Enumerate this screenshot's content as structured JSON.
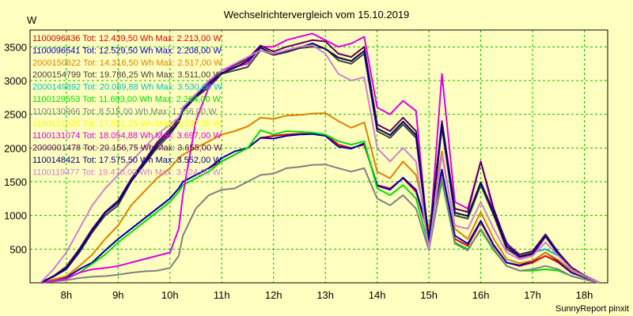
{
  "chart_data": {
    "type": "line",
    "title": "Wechselrichtervergleich vom 15.10.2019",
    "ylabel": "W",
    "xlabel": "",
    "footer": "SunnyReport pinxit",
    "ylim": [
      0,
      3750
    ],
    "xlim": [
      7.3,
      18.45
    ],
    "grid": true,
    "legend_position": "top-left",
    "y_ticks": [
      500,
      1000,
      1500,
      2000,
      2500,
      3000,
      3500
    ],
    "x_ticks": [
      {
        "v": 8,
        "label": "8h"
      },
      {
        "v": 9,
        "label": "9h"
      },
      {
        "v": 10,
        "label": "10h"
      },
      {
        "v": 11,
        "label": "11h"
      },
      {
        "v": 12,
        "label": "12h"
      },
      {
        "v": 13,
        "label": "13h"
      },
      {
        "v": 14,
        "label": "14h"
      },
      {
        "v": 15,
        "label": "15h"
      },
      {
        "v": 16,
        "label": "16h"
      },
      {
        "v": 17,
        "label": "17h"
      },
      {
        "v": 18,
        "label": "18h"
      }
    ],
    "x": [
      7.5,
      7.75,
      8,
      8.25,
      8.5,
      8.75,
      9,
      9.25,
      9.5,
      9.75,
      10,
      10.17,
      10.25,
      10.5,
      10.75,
      11,
      11.25,
      11.5,
      11.75,
      12,
      12.25,
      12.5,
      12.75,
      13,
      13.25,
      13.5,
      13.75,
      14,
      14.25,
      14.5,
      14.75,
      15,
      15.25,
      15.5,
      15.75,
      16,
      16.25,
      16.5,
      16.75,
      17,
      17.25,
      17.5,
      17.75,
      18,
      18.3
    ],
    "series": [
      {
        "label": "1100096436 Tot: 12.439,50 Wh Max: 2.213,00 W",
        "color": "#e00000",
        "values": [
          0,
          40,
          80,
          200,
          300,
          480,
          650,
          800,
          950,
          1100,
          1250,
          1400,
          1500,
          1600,
          1700,
          1800,
          1900,
          2000,
          2150,
          2180,
          2200,
          2210,
          2213,
          2200,
          2050,
          2000,
          2050,
          1450,
          1400,
          1550,
          1350,
          700,
          1650,
          650,
          550,
          900,
          550,
          300,
          250,
          300,
          400,
          300,
          150,
          80,
          0
        ]
      },
      {
        "label": "1100096541 Tot: 12.529,50 Wh Max: 2.208,00 W",
        "color": "#0000c0",
        "values": [
          0,
          40,
          80,
          200,
          300,
          480,
          650,
          800,
          950,
          1100,
          1250,
          1400,
          1500,
          1600,
          1700,
          1850,
          1950,
          2000,
          2150,
          2140,
          2180,
          2200,
          2208,
          2180,
          2020,
          1990,
          2070,
          1440,
          1380,
          1560,
          1380,
          720,
          1680,
          700,
          580,
          920,
          560,
          300,
          260,
          320,
          450,
          320,
          150,
          80,
          0
        ]
      },
      {
        "label": "2000150622 Tot: 14.316,50 Wh Max: 2.517,00 W",
        "color": "#e08000",
        "values": [
          0,
          50,
          100,
          250,
          420,
          650,
          850,
          1150,
          1350,
          1550,
          1700,
          1850,
          1900,
          2000,
          2100,
          2200,
          2250,
          2320,
          2450,
          2430,
          2480,
          2490,
          2510,
          2517,
          2400,
          2300,
          2380,
          1650,
          1550,
          1800,
          1600,
          800,
          1950,
          800,
          650,
          1050,
          650,
          350,
          290,
          330,
          450,
          340,
          180,
          90,
          0
        ]
      },
      {
        "label": "2000154799 Tot: 19.786,25 Wh Max: 3.511,00 W",
        "color": "#404040",
        "values": [
          0,
          90,
          200,
          450,
          750,
          1000,
          1150,
          1500,
          1750,
          2000,
          2200,
          2380,
          2550,
          2750,
          2900,
          3100,
          3150,
          3200,
          3450,
          3380,
          3420,
          3480,
          3500,
          3480,
          3300,
          3250,
          3400,
          2250,
          2150,
          2350,
          2150,
          600,
          2300,
          1000,
          950,
          1450,
          1000,
          500,
          380,
          420,
          680,
          430,
          220,
          100,
          0
        ]
      },
      {
        "label": "2000149892 Tot: 20.089,88 Wh Max: 3.530,00 W",
        "color": "#00c0c0",
        "values": [
          0,
          100,
          220,
          480,
          780,
          1050,
          1200,
          1520,
          1780,
          2050,
          2250,
          2400,
          2580,
          2780,
          2950,
          3120,
          3200,
          3300,
          3500,
          3400,
          3450,
          3500,
          3530,
          3480,
          3350,
          3300,
          3450,
          2300,
          2200,
          2400,
          2200,
          620,
          2350,
          1050,
          1000,
          1500,
          1050,
          550,
          400,
          450,
          500,
          400,
          220,
          100,
          0
        ]
      },
      {
        "label": "1100129553 Tot: 11.693,00 Wh Max: 2.264,00 W",
        "color": "#00e000",
        "values": [
          0,
          30,
          60,
          150,
          280,
          420,
          600,
          750,
          900,
          1050,
          1200,
          1350,
          1450,
          1550,
          1650,
          1800,
          1900,
          2000,
          2264,
          2200,
          2250,
          2240,
          2230,
          2200,
          2100,
          2050,
          2100,
          1400,
          1300,
          1450,
          1250,
          550,
          1500,
          600,
          500,
          780,
          480,
          250,
          180,
          180,
          200,
          180,
          100,
          50,
          0
        ]
      },
      {
        "label": "1100130966 Tot: 8.515,00 Wh Max: 1.756,00 W",
        "color": "#808080",
        "values": [
          0,
          20,
          40,
          70,
          90,
          100,
          120,
          150,
          170,
          180,
          220,
          400,
          700,
          1100,
          1300,
          1380,
          1400,
          1500,
          1600,
          1620,
          1700,
          1720,
          1750,
          1756,
          1700,
          1650,
          1700,
          1250,
          1150,
          1300,
          1100,
          480,
          1550,
          580,
          480,
          800,
          500,
          250,
          180,
          200,
          250,
          200,
          100,
          50,
          0
        ]
      },
      {
        "label": "1100131025 Tot: 17.531,25 Wh Max: 3.537,00 W",
        "color": "#ffff00",
        "values": [
          0,
          100,
          220,
          480,
          780,
          1050,
          1200,
          1520,
          1780,
          2050,
          2250,
          2400,
          2580,
          2780,
          2950,
          3120,
          3200,
          3300,
          3500,
          3400,
          3450,
          3500,
          3537,
          3480,
          3350,
          3300,
          3450,
          2300,
          2200,
          2400,
          2200,
          620,
          2350,
          1050,
          1000,
          1500,
          1050,
          550,
          400,
          450,
          680,
          430,
          220,
          100,
          0
        ]
      },
      {
        "label": "1100131074 Tot: 18.054,88 Wh Max: 3.697,00 W",
        "color": "#e000e0",
        "values": [
          0,
          30,
          60,
          150,
          200,
          220,
          250,
          300,
          350,
          400,
          450,
          800,
          1300,
          2400,
          2900,
          3150,
          3200,
          3250,
          3500,
          3500,
          3600,
          3650,
          3697,
          3600,
          3500,
          3550,
          3650,
          2600,
          2500,
          2700,
          2550,
          500,
          3100,
          1200,
          1100,
          1800,
          1050,
          600,
          350,
          400,
          700,
          450,
          220,
          100,
          0
        ]
      },
      {
        "label": "2000001478 Tot: 20.156,75 Wh Max: 3.655,00 W",
        "color": "#600060",
        "values": [
          0,
          100,
          240,
          500,
          800,
          1050,
          1220,
          1540,
          1800,
          2080,
          2280,
          2430,
          2600,
          2800,
          2970,
          3150,
          3230,
          3320,
          3520,
          3430,
          3500,
          3550,
          3600,
          3580,
          3400,
          3350,
          3500,
          2350,
          2250,
          2450,
          2250,
          650,
          2400,
          1100,
          1050,
          1800,
          1100,
          580,
          420,
          470,
          720,
          450,
          230,
          110,
          0
        ]
      },
      {
        "label": "1100148421 Tot: 17.575,50 Wh Max: 3.552,00 W",
        "color": "#000080",
        "values": [
          0,
          95,
          210,
          470,
          770,
          1040,
          1190,
          1510,
          1770,
          2040,
          2240,
          2390,
          2570,
          2770,
          2940,
          3110,
          3190,
          3290,
          3490,
          3390,
          3440,
          3490,
          3552,
          3470,
          3340,
          3290,
          3440,
          2290,
          2190,
          2390,
          2190,
          610,
          2340,
          1040,
          990,
          1490,
          1040,
          540,
          390,
          440,
          690,
          420,
          210,
          95,
          0
        ]
      },
      {
        "label": "1100119477 Tot: 19.470,00 Wh Max: 3.524,00 W",
        "color": "#d080d0",
        "values": [
          0,
          200,
          450,
          800,
          1150,
          1400,
          1600,
          1800,
          2000,
          2200,
          2350,
          2450,
          2600,
          2800,
          3000,
          3150,
          3250,
          3350,
          3450,
          3400,
          3450,
          3500,
          3524,
          3400,
          3100,
          3000,
          3050,
          2000,
          1800,
          2000,
          1800,
          500,
          1900,
          850,
          800,
          1200,
          800,
          450,
          350,
          400,
          600,
          400,
          200,
          100,
          0
        ]
      }
    ]
  }
}
